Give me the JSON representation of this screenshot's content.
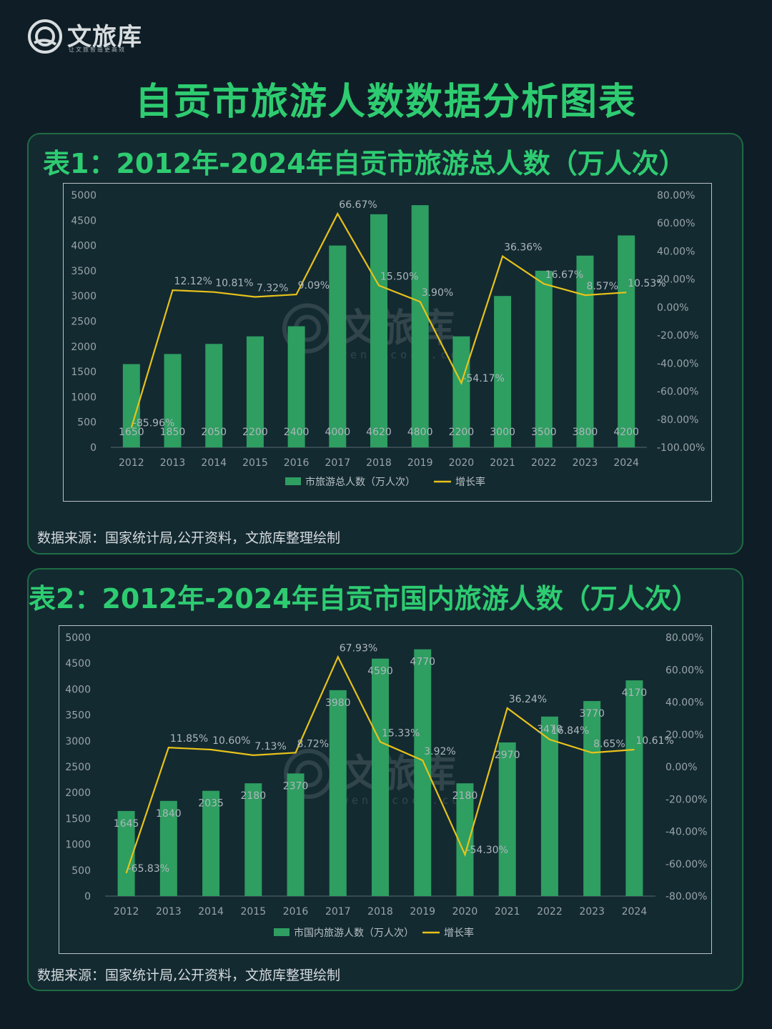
{
  "brand": {
    "name": "文旅库",
    "slogan": "让文旅智造更高效",
    "watermark_name": "文旅库",
    "watermark_url": "wenlvcool.com"
  },
  "page_title": "自贡市旅游人数数据分析图表",
  "colors": {
    "bar": "#2e9e61",
    "line": "#e8c21a",
    "title": "#2ecc71",
    "background": "#0f1e26"
  },
  "chart_data": [
    {
      "type": "bar",
      "title": "表1：2012年-2024年自贡市旅游总人数（万人次）",
      "source": "数据来源：国家统计局,公开资料，文旅库整理绘制",
      "categories": [
        "2012",
        "2013",
        "2014",
        "2015",
        "2016",
        "2017",
        "2018",
        "2019",
        "2020",
        "2021",
        "2022",
        "2023",
        "2024"
      ],
      "series": [
        {
          "name": "市旅游总人数（万人次）",
          "type": "bar",
          "axis": "left",
          "values": [
            1650,
            1850,
            2050,
            2200,
            2400,
            4000,
            4620,
            4800,
            2200,
            3000,
            3500,
            3800,
            4200
          ],
          "labels": [
            "1650",
            "1850",
            "2050",
            "2200",
            "2400",
            "4000",
            "4620",
            "4800",
            "2200",
            "3000",
            "3500",
            "3800",
            "4200"
          ]
        },
        {
          "name": "增长率",
          "type": "line",
          "axis": "right",
          "values": [
            -85.96,
            12.12,
            10.81,
            7.32,
            9.09,
            66.67,
            15.5,
            3.9,
            -54.17,
            36.36,
            16.67,
            8.57,
            10.53
          ],
          "labels": [
            "-85.96%",
            "12.12%",
            "10.81%",
            "7.32%",
            "9.09%",
            "66.67%",
            "15.50%",
            "3.90%",
            "-54.17%",
            "36.36%",
            "16.67%",
            "8.57%",
            "10.53%"
          ]
        }
      ],
      "ylim": [
        0,
        5000
      ],
      "y_ticks": [
        "0",
        "500",
        "1000",
        "1500",
        "2000",
        "2500",
        "3000",
        "3500",
        "4000",
        "4500",
        "5000"
      ],
      "y2lim": [
        -100,
        80
      ],
      "y2_ticks": [
        "-100.00%",
        "-80.00%",
        "-60.00%",
        "-40.00%",
        "-20.00%",
        "0.00%",
        "20.00%",
        "40.00%",
        "60.00%",
        "80.00%"
      ],
      "legend_position": "bottom"
    },
    {
      "type": "bar",
      "title": "表2：2012年-2024年自贡市国内旅游人数（万人次）",
      "source": "数据来源：国家统计局,公开资料，文旅库整理绘制",
      "categories": [
        "2012",
        "2013",
        "2014",
        "2015",
        "2016",
        "2017",
        "2018",
        "2019",
        "2020",
        "2021",
        "2022",
        "2023",
        "2024"
      ],
      "series": [
        {
          "name": "市国内旅游人数（万人次）",
          "type": "bar",
          "axis": "left",
          "values": [
            1645,
            1840,
            2035,
            2180,
            2370,
            3980,
            4590,
            4770,
            2180,
            2970,
            3470,
            3770,
            4170
          ],
          "labels": [
            "1645",
            "1840",
            "2035",
            "2180",
            "2370",
            "3980",
            "4590",
            "4770",
            "2180",
            "2970",
            "3470",
            "3770",
            "4170"
          ]
        },
        {
          "name": "增长率",
          "type": "line",
          "axis": "right",
          "values": [
            -65.83,
            11.85,
            10.6,
            7.13,
            8.72,
            67.93,
            15.33,
            3.92,
            -54.3,
            36.24,
            16.84,
            8.65,
            10.61
          ],
          "labels": [
            "-65.83%",
            "11.85%",
            "10.60%",
            "7.13%",
            "8.72%",
            "67.93%",
            "15.33%",
            "3.92%",
            "-54.30%",
            "36.24%",
            "16.84%",
            "8.65%",
            "10.61%"
          ]
        }
      ],
      "ylim": [
        0,
        5000
      ],
      "y_ticks": [
        "0",
        "500",
        "1000",
        "1500",
        "2000",
        "2500",
        "3000",
        "3500",
        "4000",
        "4500",
        "5000"
      ],
      "y2lim": [
        -80,
        80
      ],
      "y2_ticks": [
        "-80.00%",
        "-60.00%",
        "-40.00%",
        "-20.00%",
        "0.00%",
        "20.00%",
        "40.00%",
        "60.00%",
        "80.00%"
      ],
      "legend_position": "bottom"
    }
  ]
}
